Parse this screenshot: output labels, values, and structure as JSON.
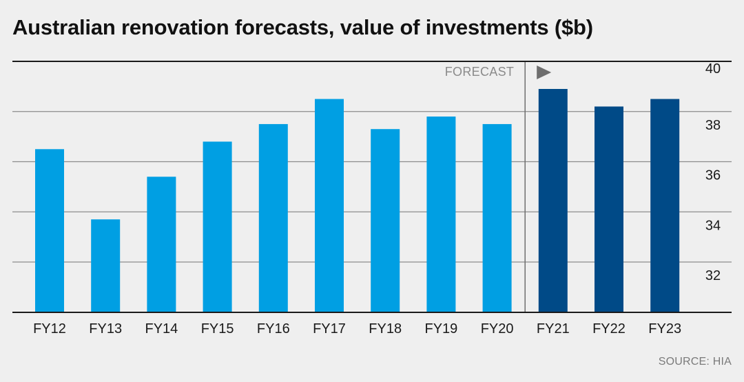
{
  "title": "Australian renovation forecasts, value of investments ($b)",
  "source": "SOURCE: HIA",
  "forecast_label": "FORECAST",
  "colors": {
    "actual": "#009fe3",
    "forecast": "#004a87",
    "grid": "#8c8c8c",
    "axis": "#1a1a1a",
    "background": "#efefef",
    "text": "#1a1a1a",
    "muted": "#7a7a7a"
  },
  "chart_data": {
    "type": "bar",
    "title": "Australian renovation forecasts, value of investments ($b)",
    "categories": [
      "FY12",
      "FY13",
      "FY14",
      "FY15",
      "FY16",
      "FY17",
      "FY18",
      "FY19",
      "FY20",
      "FY21",
      "FY22",
      "FY23"
    ],
    "values": [
      36.5,
      33.7,
      35.4,
      36.8,
      37.5,
      38.5,
      37.3,
      37.8,
      37.5,
      38.9,
      38.2,
      38.5
    ],
    "forecast_from": "FY21",
    "yticks": [
      32,
      34,
      36,
      38,
      40
    ],
    "ylim": [
      30,
      40
    ],
    "grid": true,
    "y_axis_side": "right",
    "xlabel": "",
    "ylabel": ""
  }
}
